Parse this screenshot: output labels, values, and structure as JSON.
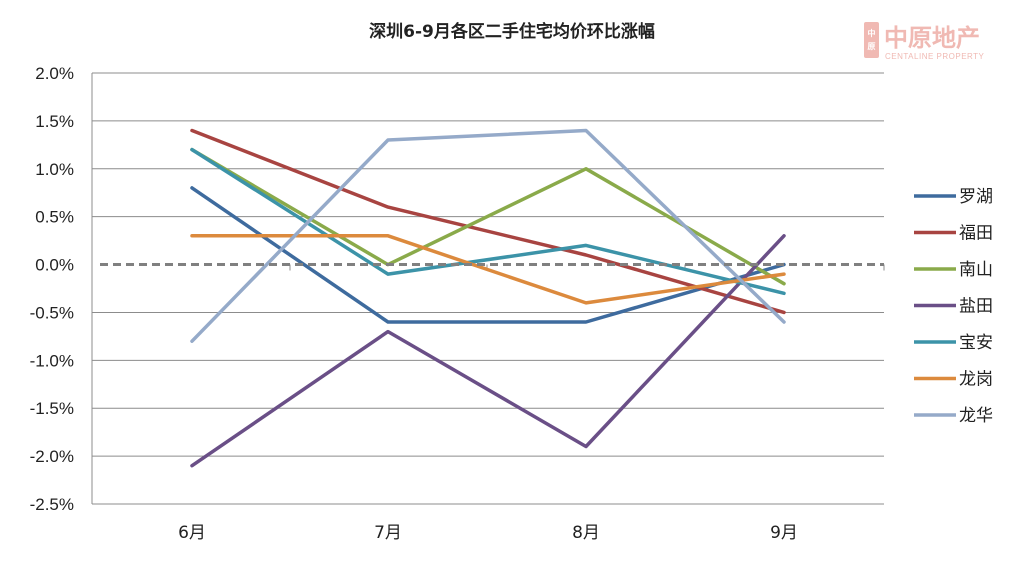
{
  "chart_data": {
    "type": "line",
    "title": "深圳6-9月各区二手住宅均价环比涨幅",
    "categories": [
      "6月",
      "7月",
      "8月",
      "9月"
    ],
    "ylim": [
      -2.5,
      2.0
    ],
    "yticks": [
      "2.0%",
      "1.5%",
      "1.0%",
      "0.5%",
      "0.0%",
      "-0.5%",
      "-1.0%",
      "-1.5%",
      "-2.0%",
      "-2.5%"
    ],
    "ytick_values": [
      2.0,
      1.5,
      1.0,
      0.5,
      0.0,
      -0.5,
      -1.0,
      -1.5,
      -2.0,
      -2.5
    ],
    "zero_line": "dashed",
    "grid": true,
    "legend_position": "right",
    "series": [
      {
        "name": "罗湖",
        "color": "#3e6b9e",
        "values": [
          0.8,
          -0.6,
          -0.6,
          0.0
        ]
      },
      {
        "name": "福田",
        "color": "#a84441",
        "values": [
          1.4,
          0.6,
          0.1,
          -0.5
        ]
      },
      {
        "name": "南山",
        "color": "#8aaa4a",
        "values": [
          1.2,
          0.0,
          1.0,
          -0.2
        ]
      },
      {
        "name": "盐田",
        "color": "#6a4f87",
        "values": [
          -2.1,
          -0.7,
          -1.9,
          0.3
        ]
      },
      {
        "name": "宝安",
        "color": "#3c93a8",
        "values": [
          1.2,
          -0.1,
          0.2,
          -0.3
        ]
      },
      {
        "name": "龙岗",
        "color": "#dc8a3d",
        "values": [
          0.3,
          0.3,
          -0.4,
          -0.1
        ]
      },
      {
        "name": "龙华",
        "color": "#95aac9",
        "values": [
          -0.8,
          1.3,
          1.4,
          -0.6
        ]
      }
    ]
  },
  "watermark": {
    "brand_cn": "中原地产",
    "brand_en": "CENTALINE PROPERTY",
    "seal": "中原",
    "color": "#f0b9b3"
  }
}
